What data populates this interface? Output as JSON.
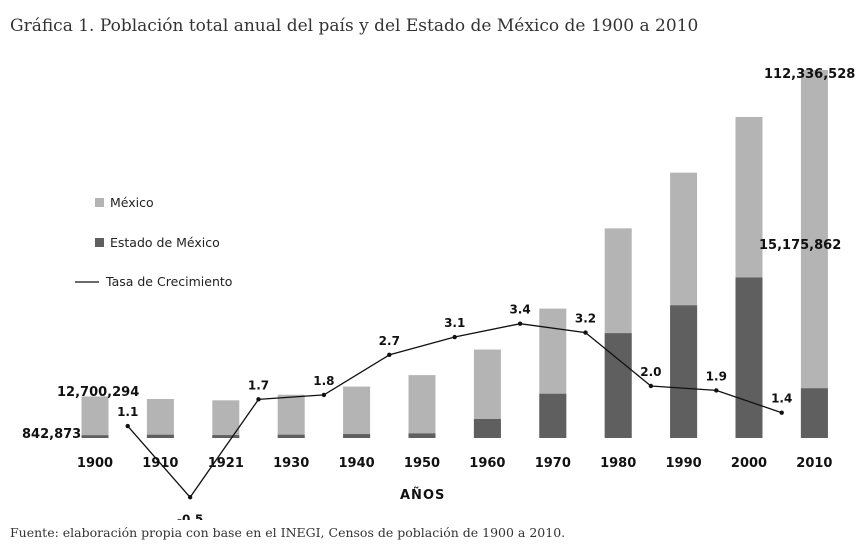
{
  "title": "Gráfica 1. Población total anual del país y del Estado de México de 1900 a 2010",
  "source": "Fuente: elaboración propia con base en el INEGI, Censos de población de 1900 a 2010.",
  "colors": {
    "mexico": "#b4b4b4",
    "estado": "#5f5f5f",
    "line": "#111111"
  },
  "chart_data": {
    "type": "bar",
    "title": "Gráfica 1. Población total anual del país y del Estado de México de 1900 a 2010",
    "xlabel": "AÑOS",
    "ylabel": "",
    "categories": [
      "1900",
      "1910",
      "1921",
      "1930",
      "1940",
      "1950",
      "1960",
      "1970",
      "1980",
      "1990",
      "2000",
      "2010"
    ],
    "ylim": [
      0,
      120000000
    ],
    "series": [
      {
        "name": "México",
        "values": [
          12700294,
          11900000,
          11500000,
          13200000,
          15700000,
          19200000,
          27000000,
          39500000,
          64000000,
          81000000,
          98000000,
          112336528
        ]
      },
      {
        "name": "Estado de México",
        "values": [
          842873,
          990000,
          880000,
          1000000,
          1200000,
          1400000,
          5800000,
          13500000,
          32000000,
          40500000,
          49000000,
          15175862
        ]
      }
    ],
    "growth_rate": {
      "name": "Tasa de Crecimiento",
      "positions": [
        1905,
        1915,
        1925.5,
        1935,
        1945,
        1955,
        1965,
        1975,
        1985,
        1995,
        2005
      ],
      "values": [
        1.1,
        -0.5,
        1.7,
        1.8,
        2.7,
        3.1,
        3.4,
        3.2,
        2.0,
        1.9,
        1.4
      ],
      "labels": [
        "1.1",
        "-0.5",
        "1.7",
        "1.8",
        "2.7",
        "3.1",
        "3.4",
        "3.2",
        "2.0",
        "1.9",
        "1.4"
      ]
    },
    "value_labels": {
      "mexico_first": "12,700,294",
      "estado_first": "842,873",
      "mexico_last": "112,336,528",
      "estado_last": "15,175,862"
    },
    "legend": {
      "position": "left",
      "entries": [
        "México",
        "Estado de México",
        "Tasa de Crecimiento"
      ]
    }
  }
}
